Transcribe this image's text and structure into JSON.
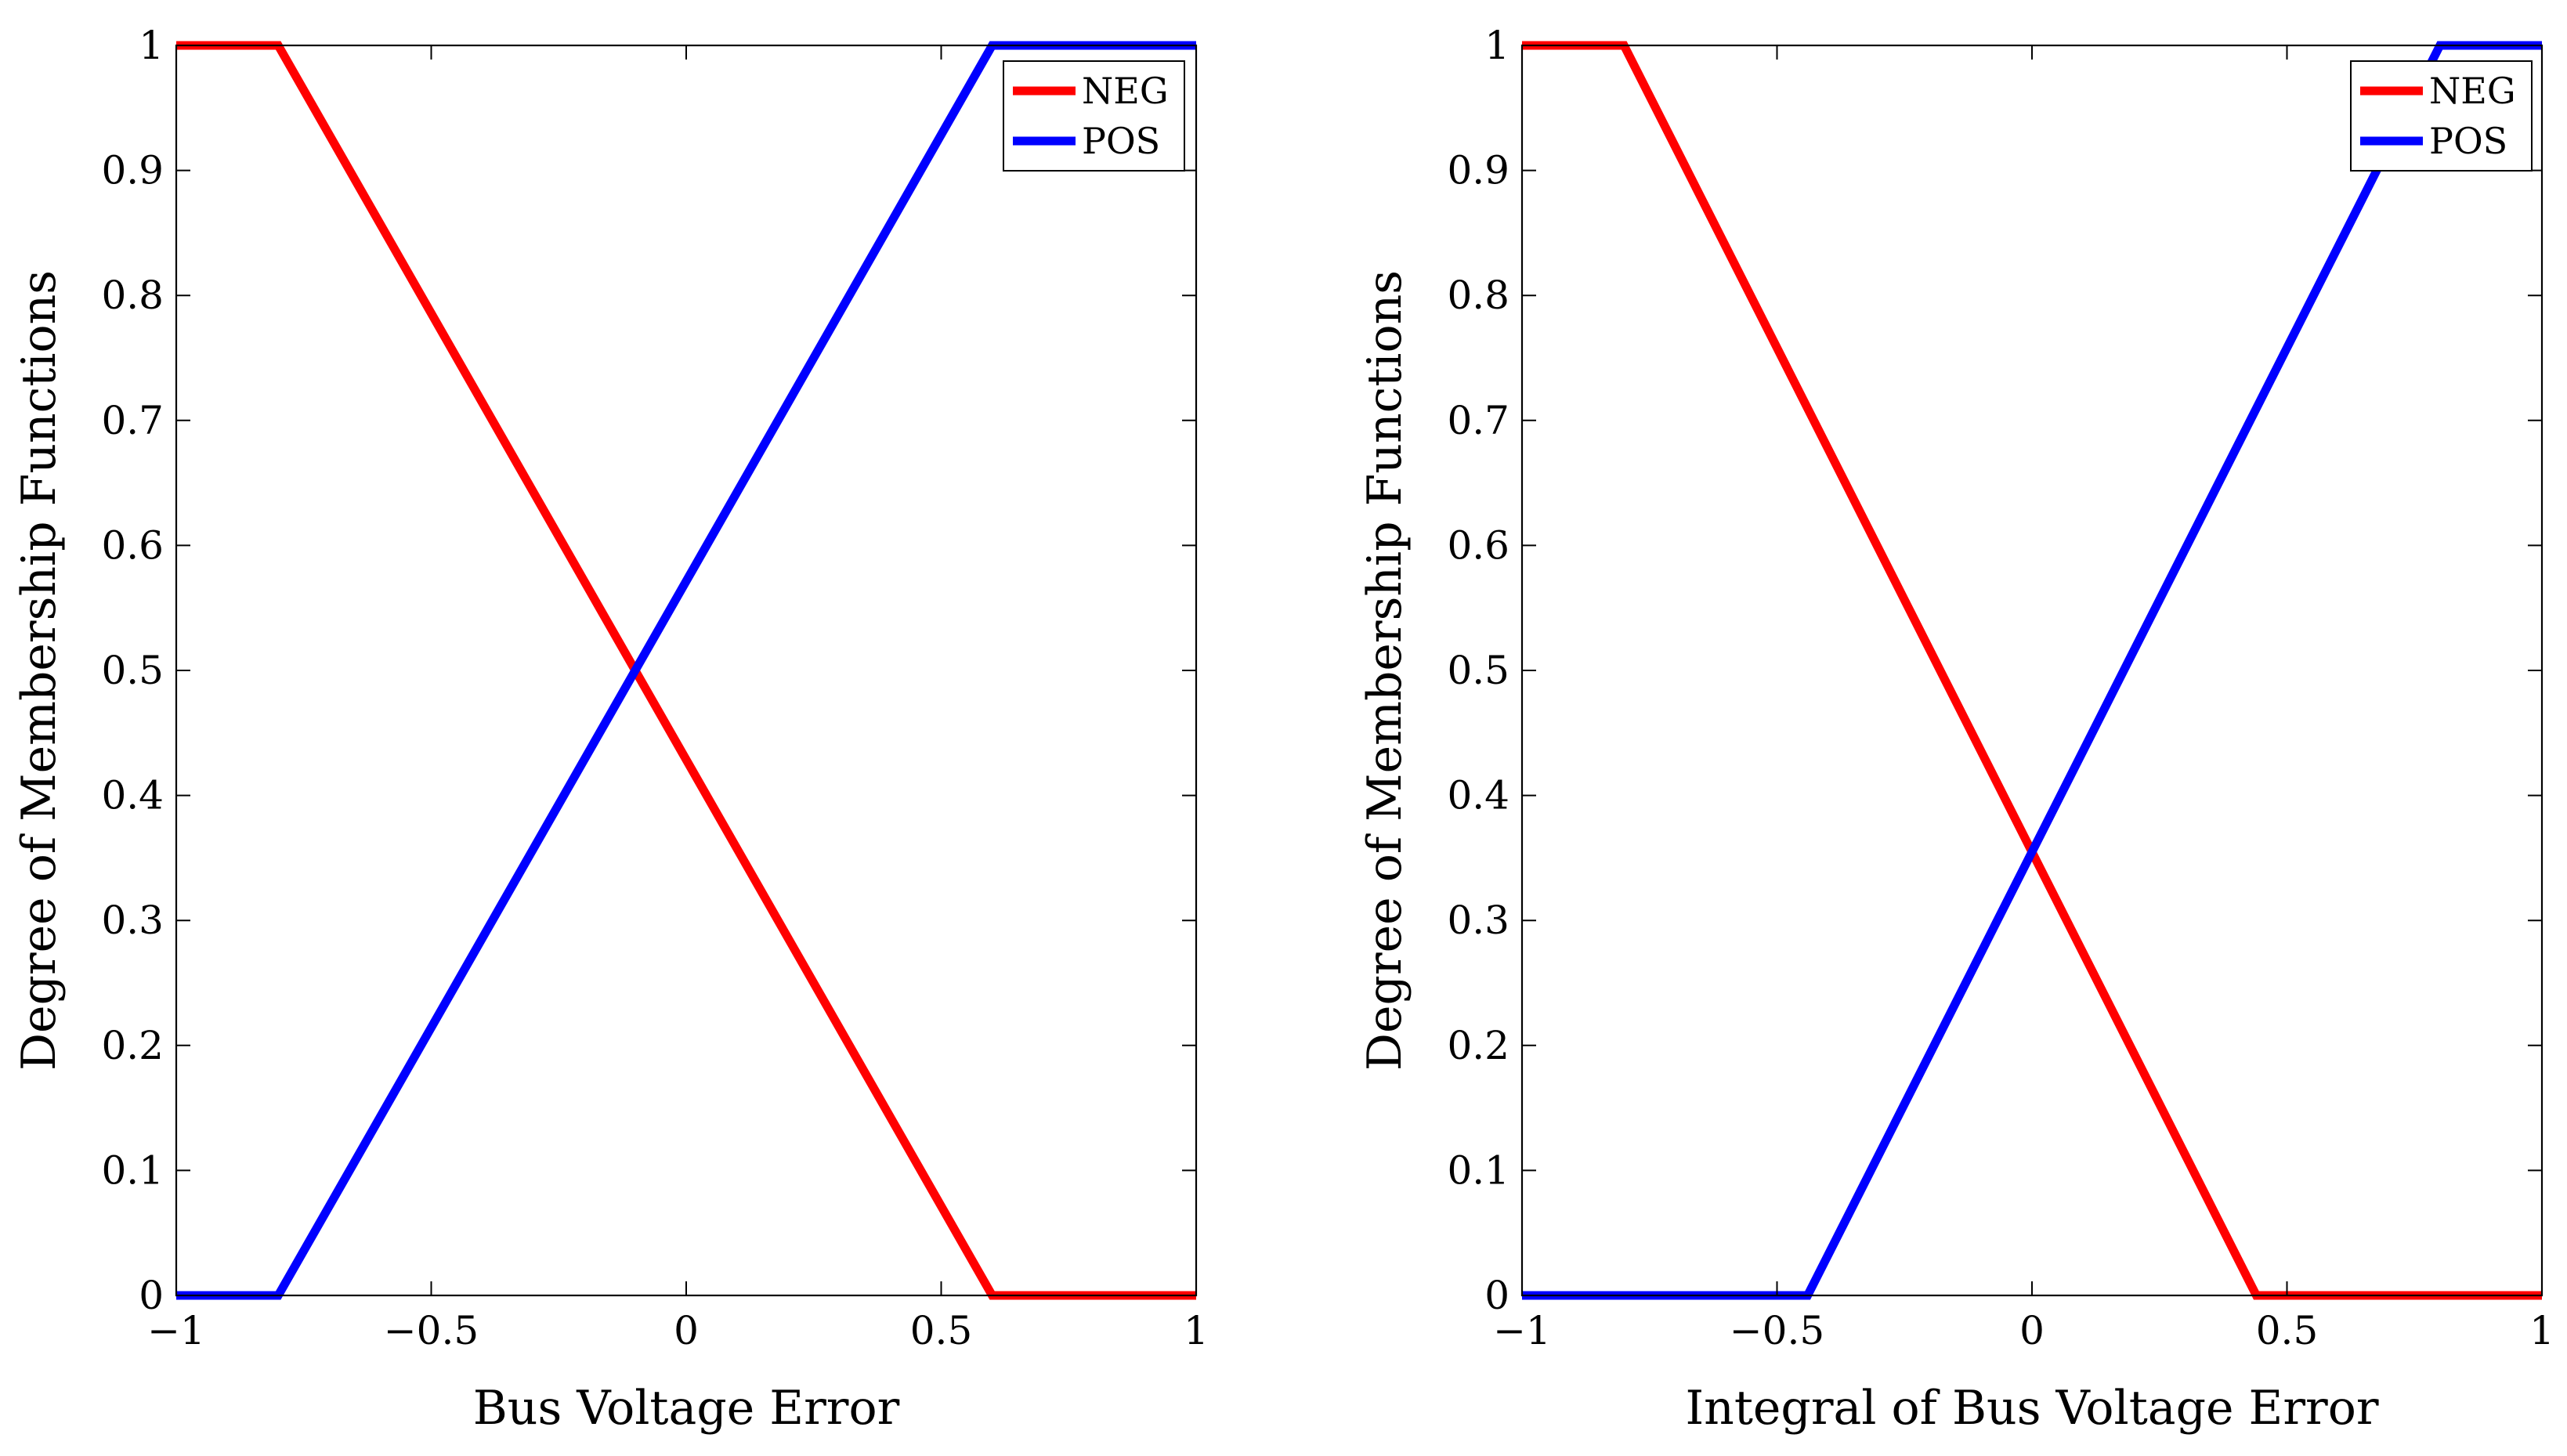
{
  "chart_data": [
    {
      "type": "line",
      "xlabel": "Bus Voltage Error",
      "ylabel": "Degree of Membership Functions",
      "xlim": [
        -1,
        1
      ],
      "ylim": [
        0,
        1
      ],
      "xticks": [
        -1,
        -0.5,
        0,
        0.5,
        1
      ],
      "xtick_labels": [
        "−1",
        "−0.5",
        "0",
        "0.5",
        "1"
      ],
      "yticks": [
        0,
        0.1,
        0.2,
        0.3,
        0.4,
        0.5,
        0.6,
        0.7,
        0.8,
        0.9,
        1
      ],
      "ytick_labels": [
        "0",
        "0.1",
        "0.2",
        "0.3",
        "0.4",
        "0.5",
        "0.6",
        "0.7",
        "0.8",
        "0.9",
        "1"
      ],
      "grid": false,
      "legend": "top-right",
      "series": [
        {
          "name": "NEG",
          "color": "#ff0000",
          "x": [
            -1,
            -0.8,
            0.6,
            1
          ],
          "y": [
            1,
            1,
            0,
            0
          ]
        },
        {
          "name": "POS",
          "color": "#0000ff",
          "x": [
            -1,
            -0.8,
            0.6,
            1
          ],
          "y": [
            0,
            0,
            1,
            1
          ]
        }
      ]
    },
    {
      "type": "line",
      "xlabel": "Integral of Bus Voltage Error",
      "ylabel": "Degree of Membership Functions",
      "xlim": [
        -1,
        1
      ],
      "ylim": [
        0,
        1
      ],
      "xticks": [
        -1,
        -0.5,
        0,
        0.5,
        1
      ],
      "xtick_labels": [
        "−1",
        "−0.5",
        "0",
        "0.5",
        "1"
      ],
      "yticks": [
        0,
        0.1,
        0.2,
        0.3,
        0.4,
        0.5,
        0.6,
        0.7,
        0.8,
        0.9,
        1
      ],
      "ytick_labels": [
        "0",
        "0.1",
        "0.2",
        "0.3",
        "0.4",
        "0.5",
        "0.6",
        "0.7",
        "0.8",
        "0.9",
        "1"
      ],
      "grid": false,
      "legend": "top-right",
      "series": [
        {
          "name": "NEG",
          "color": "#ff0000",
          "x": [
            -1,
            -0.8,
            0.44,
            1
          ],
          "y": [
            1,
            1,
            0,
            0
          ]
        },
        {
          "name": "POS",
          "color": "#0000ff",
          "x": [
            -1,
            -0.44,
            0.8,
            1
          ],
          "y": [
            0,
            0,
            1,
            1
          ]
        }
      ]
    }
  ]
}
